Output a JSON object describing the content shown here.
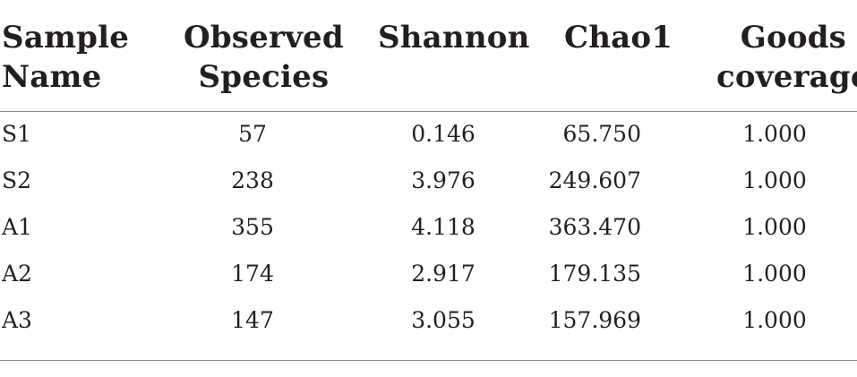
{
  "table": {
    "headers": [
      [
        "Sample",
        "Name"
      ],
      [
        "Observed",
        "Species"
      ],
      [
        "Shannon"
      ],
      [
        "Chao1"
      ],
      [
        "Goods",
        "coverage"
      ]
    ],
    "rows": [
      [
        "S1",
        "57",
        "0.146",
        "65.750",
        "1.000"
      ],
      [
        "S2",
        "238",
        "3.976",
        "249.607",
        "1.000"
      ],
      [
        "A1",
        "355",
        "4.118",
        "363.470",
        "1.000"
      ],
      [
        "A2",
        "174",
        "2.917",
        "179.135",
        "1.000"
      ],
      [
        "A3",
        "147",
        "3.055",
        "157.969",
        "1.000"
      ]
    ]
  }
}
